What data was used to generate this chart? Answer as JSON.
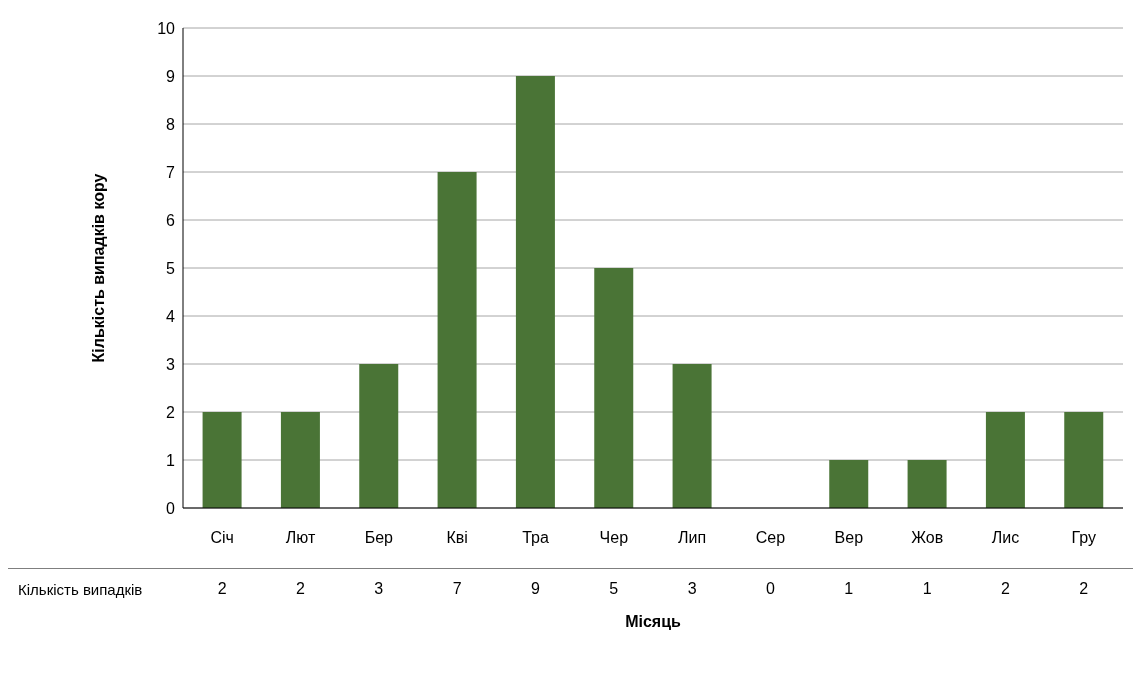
{
  "chart_data": {
    "type": "bar",
    "xlabel": "Місяць",
    "ylabel": "Кількість випадків кору",
    "categories": [
      "Січ",
      "Лют",
      "Бер",
      "Кві",
      "Тра",
      "Чер",
      "Лип",
      "Сер",
      "Вер",
      "Жов",
      "Лис",
      "Гру"
    ],
    "series": [
      {
        "name": "Кількість випадків",
        "color": "#4a7436",
        "values": [
          2,
          2,
          3,
          7,
          9,
          5,
          3,
          0,
          1,
          1,
          2,
          2
        ]
      }
    ],
    "ylim": [
      0,
      10
    ],
    "yticks": [
      0,
      1,
      2,
      3,
      4,
      5,
      6,
      7,
      8,
      9,
      10
    ],
    "grid": "y",
    "data_labels": true
  }
}
